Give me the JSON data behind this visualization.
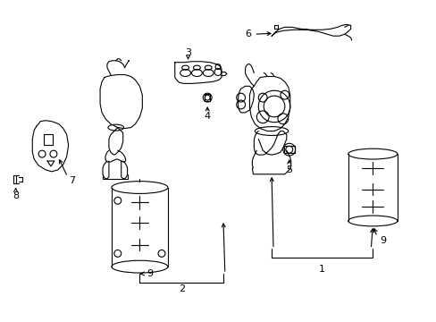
{
  "background_color": "#ffffff",
  "line_color": "#000000",
  "line_width": 0.8,
  "label_fontsize": 7.5,
  "figsize": [
    4.89,
    3.6
  ],
  "dpi": 100
}
